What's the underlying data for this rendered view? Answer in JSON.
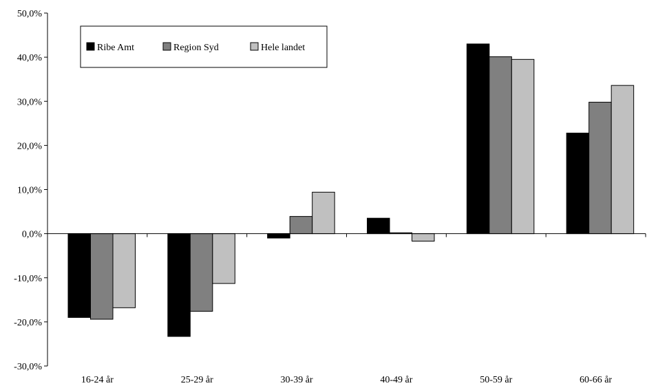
{
  "chart_data": {
    "type": "bar",
    "categories": [
      "16-24 år",
      "25-29 år",
      "30-39 år",
      "40-49 år",
      "50-59 år",
      "60-66 år"
    ],
    "series": [
      {
        "name": "Ribe Amt",
        "color": "#000000",
        "values": [
          -19.0,
          -23.3,
          -1.0,
          3.5,
          43.0,
          22.8
        ]
      },
      {
        "name": "Region Syd",
        "color": "#808080",
        "values": [
          -19.4,
          -17.6,
          3.9,
          0.2,
          40.1,
          29.8
        ]
      },
      {
        "name": "Hele landet",
        "color": "#c0c0c0",
        "values": [
          -16.8,
          -11.3,
          9.4,
          -1.7,
          39.5,
          33.6
        ]
      }
    ],
    "y_ticks": [
      "-30,0%",
      "-20,0%",
      "-10,0%",
      "0,0%",
      "10,0%",
      "20,0%",
      "30,0%",
      "40,0%",
      "50,0%"
    ],
    "ylim": [
      -30,
      50
    ],
    "grid": false,
    "legend": "top-left"
  }
}
